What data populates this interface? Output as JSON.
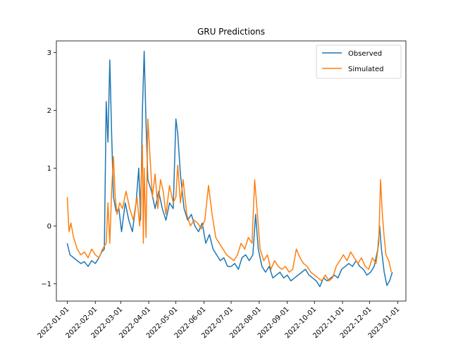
{
  "chart_data": {
    "type": "line",
    "title": "GRU Predictions",
    "xlabel": "",
    "ylabel": "",
    "x_tick_labels": [
      "2022-01-01",
      "2022-02-01",
      "2022-03-01",
      "2022-04-01",
      "2022-05-01",
      "2022-06-01",
      "2022-07-01",
      "2022-08-01",
      "2022-09-01",
      "2022-10-01",
      "2022-11-01",
      "2022-12-01",
      "2023-01-01"
    ],
    "y_ticks": [
      -1,
      0,
      1,
      2,
      3
    ],
    "ylim": [
      -1.3,
      3.2
    ],
    "xlim": [
      "2021-12-20",
      "2023-01-10"
    ],
    "grid": false,
    "legend_position": "top-right",
    "series": [
      {
        "name": "Observed",
        "color": "#1f77b4",
        "points": [
          [
            "2022-01-01",
            -0.3
          ],
          [
            "2022-01-04",
            -0.5
          ],
          [
            "2022-01-08",
            -0.55
          ],
          [
            "2022-01-12",
            -0.6
          ],
          [
            "2022-01-16",
            -0.65
          ],
          [
            "2022-01-20",
            -0.62
          ],
          [
            "2022-01-24",
            -0.7
          ],
          [
            "2022-01-28",
            -0.6
          ],
          [
            "2022-02-01",
            -0.65
          ],
          [
            "2022-02-05",
            -0.55
          ],
          [
            "2022-02-08",
            -0.45
          ],
          [
            "2022-02-11",
            -0.4
          ],
          [
            "2022-02-13",
            2.15
          ],
          [
            "2022-02-15",
            1.45
          ],
          [
            "2022-02-17",
            2.87
          ],
          [
            "2022-02-19",
            1.6
          ],
          [
            "2022-02-21",
            0.5
          ],
          [
            "2022-02-24",
            0.25
          ],
          [
            "2022-02-27",
            0.3
          ],
          [
            "2022-03-02",
            -0.1
          ],
          [
            "2022-03-06",
            0.4
          ],
          [
            "2022-03-10",
            0.1
          ],
          [
            "2022-03-14",
            -0.1
          ],
          [
            "2022-03-18",
            0.4
          ],
          [
            "2022-03-21",
            1.0
          ],
          [
            "2022-03-23",
            0.1
          ],
          [
            "2022-03-25",
            2.0
          ],
          [
            "2022-03-27",
            3.02
          ],
          [
            "2022-03-29",
            1.8
          ],
          [
            "2022-03-31",
            0.8
          ],
          [
            "2022-04-04",
            0.6
          ],
          [
            "2022-04-08",
            0.3
          ],
          [
            "2022-04-12",
            0.6
          ],
          [
            "2022-04-16",
            0.3
          ],
          [
            "2022-04-20",
            0.1
          ],
          [
            "2022-04-24",
            0.4
          ],
          [
            "2022-04-28",
            0.3
          ],
          [
            "2022-05-01",
            1.85
          ],
          [
            "2022-05-03",
            1.6
          ],
          [
            "2022-05-06",
            0.9
          ],
          [
            "2022-05-10",
            0.3
          ],
          [
            "2022-05-14",
            0.1
          ],
          [
            "2022-05-18",
            0.2
          ],
          [
            "2022-05-22",
            0.0
          ],
          [
            "2022-05-26",
            -0.1
          ],
          [
            "2022-05-30",
            0.05
          ],
          [
            "2022-06-03",
            -0.3
          ],
          [
            "2022-06-07",
            -0.15
          ],
          [
            "2022-06-11",
            -0.4
          ],
          [
            "2022-06-15",
            -0.5
          ],
          [
            "2022-06-19",
            -0.6
          ],
          [
            "2022-06-23",
            -0.55
          ],
          [
            "2022-06-27",
            -0.7
          ],
          [
            "2022-07-01",
            -0.7
          ],
          [
            "2022-07-05",
            -0.65
          ],
          [
            "2022-07-09",
            -0.75
          ],
          [
            "2022-07-13",
            -0.55
          ],
          [
            "2022-07-17",
            -0.5
          ],
          [
            "2022-07-21",
            -0.6
          ],
          [
            "2022-07-25",
            -0.5
          ],
          [
            "2022-07-28",
            0.2
          ],
          [
            "2022-07-31",
            -0.4
          ],
          [
            "2022-08-04",
            -0.7
          ],
          [
            "2022-08-08",
            -0.8
          ],
          [
            "2022-08-12",
            -0.7
          ],
          [
            "2022-08-16",
            -0.9
          ],
          [
            "2022-08-20",
            -0.85
          ],
          [
            "2022-08-24",
            -0.8
          ],
          [
            "2022-08-28",
            -0.9
          ],
          [
            "2022-09-01",
            -0.85
          ],
          [
            "2022-09-05",
            -0.95
          ],
          [
            "2022-09-09",
            -0.9
          ],
          [
            "2022-09-13",
            -0.85
          ],
          [
            "2022-09-17",
            -0.8
          ],
          [
            "2022-09-21",
            -0.75
          ],
          [
            "2022-09-25",
            -0.85
          ],
          [
            "2022-09-29",
            -0.9
          ],
          [
            "2022-10-03",
            -0.95
          ],
          [
            "2022-10-07",
            -1.05
          ],
          [
            "2022-10-11",
            -0.9
          ],
          [
            "2022-10-15",
            -0.95
          ],
          [
            "2022-10-19",
            -0.9
          ],
          [
            "2022-10-23",
            -0.85
          ],
          [
            "2022-10-27",
            -0.9
          ],
          [
            "2022-10-31",
            -0.75
          ],
          [
            "2022-11-04",
            -0.7
          ],
          [
            "2022-11-08",
            -0.65
          ],
          [
            "2022-11-12",
            -0.7
          ],
          [
            "2022-11-16",
            -0.6
          ],
          [
            "2022-11-20",
            -0.7
          ],
          [
            "2022-11-24",
            -0.75
          ],
          [
            "2022-11-28",
            -0.85
          ],
          [
            "2022-12-02",
            -0.8
          ],
          [
            "2022-12-06",
            -0.7
          ],
          [
            "2022-12-10",
            -0.4
          ],
          [
            "2022-12-12",
            0.0
          ],
          [
            "2022-12-14",
            -0.4
          ],
          [
            "2022-12-17",
            -0.8
          ],
          [
            "2022-12-20",
            -1.03
          ],
          [
            "2022-12-23",
            -0.95
          ],
          [
            "2022-12-26",
            -0.8
          ]
        ]
      },
      {
        "name": "Simulated",
        "color": "#ff7f0e",
        "points": [
          [
            "2022-01-01",
            0.5
          ],
          [
            "2022-01-03",
            -0.1
          ],
          [
            "2022-01-05",
            0.05
          ],
          [
            "2022-01-08",
            -0.2
          ],
          [
            "2022-01-12",
            -0.4
          ],
          [
            "2022-01-16",
            -0.5
          ],
          [
            "2022-01-20",
            -0.45
          ],
          [
            "2022-01-24",
            -0.55
          ],
          [
            "2022-01-28",
            -0.4
          ],
          [
            "2022-02-01",
            -0.5
          ],
          [
            "2022-02-05",
            -0.55
          ],
          [
            "2022-02-09",
            -0.4
          ],
          [
            "2022-02-13",
            -0.3
          ],
          [
            "2022-02-15",
            0.4
          ],
          [
            "2022-02-17",
            -0.3
          ],
          [
            "2022-02-19",
            0.6
          ],
          [
            "2022-02-21",
            1.2
          ],
          [
            "2022-02-23",
            0.5
          ],
          [
            "2022-02-25",
            0.2
          ],
          [
            "2022-02-28",
            0.4
          ],
          [
            "2022-03-03",
            0.3
          ],
          [
            "2022-03-07",
            0.6
          ],
          [
            "2022-03-11",
            0.3
          ],
          [
            "2022-03-15",
            0.1
          ],
          [
            "2022-03-19",
            0.5
          ],
          [
            "2022-03-22",
            0.0
          ],
          [
            "2022-03-25",
            1.4
          ],
          [
            "2022-03-26",
            -0.3
          ],
          [
            "2022-03-27",
            1.0
          ],
          [
            "2022-03-29",
            -0.2
          ],
          [
            "2022-03-31",
            1.85
          ],
          [
            "2022-04-02",
            1.3
          ],
          [
            "2022-04-05",
            0.5
          ],
          [
            "2022-04-08",
            0.9
          ],
          [
            "2022-04-11",
            0.3
          ],
          [
            "2022-04-14",
            0.8
          ],
          [
            "2022-04-17",
            0.6
          ],
          [
            "2022-04-20",
            0.2
          ],
          [
            "2022-04-24",
            0.7
          ],
          [
            "2022-04-28",
            0.4
          ],
          [
            "2022-05-01",
            0.5
          ],
          [
            "2022-05-03",
            1.05
          ],
          [
            "2022-05-06",
            0.4
          ],
          [
            "2022-05-09",
            0.8
          ],
          [
            "2022-05-13",
            0.2
          ],
          [
            "2022-05-17",
            0.0
          ],
          [
            "2022-05-21",
            0.1
          ],
          [
            "2022-05-25",
            0.05
          ],
          [
            "2022-05-29",
            -0.05
          ],
          [
            "2022-06-02",
            0.1
          ],
          [
            "2022-06-06",
            0.7
          ],
          [
            "2022-06-10",
            0.2
          ],
          [
            "2022-06-14",
            -0.2
          ],
          [
            "2022-06-18",
            -0.3
          ],
          [
            "2022-06-22",
            -0.4
          ],
          [
            "2022-06-26",
            -0.5
          ],
          [
            "2022-06-30",
            -0.55
          ],
          [
            "2022-07-04",
            -0.6
          ],
          [
            "2022-07-08",
            -0.5
          ],
          [
            "2022-07-12",
            -0.3
          ],
          [
            "2022-07-16",
            -0.4
          ],
          [
            "2022-07-20",
            -0.2
          ],
          [
            "2022-07-24",
            -0.3
          ],
          [
            "2022-07-27",
            0.8
          ],
          [
            "2022-07-30",
            0.2
          ],
          [
            "2022-08-02",
            -0.4
          ],
          [
            "2022-08-06",
            -0.6
          ],
          [
            "2022-08-10",
            -0.5
          ],
          [
            "2022-08-14",
            -0.75
          ],
          [
            "2022-08-18",
            -0.6
          ],
          [
            "2022-08-22",
            -0.7
          ],
          [
            "2022-08-26",
            -0.75
          ],
          [
            "2022-08-30",
            -0.7
          ],
          [
            "2022-09-03",
            -0.8
          ],
          [
            "2022-09-07",
            -0.75
          ],
          [
            "2022-09-11",
            -0.4
          ],
          [
            "2022-09-15",
            -0.55
          ],
          [
            "2022-09-19",
            -0.65
          ],
          [
            "2022-09-23",
            -0.7
          ],
          [
            "2022-09-27",
            -0.8
          ],
          [
            "2022-10-01",
            -0.85
          ],
          [
            "2022-10-05",
            -0.9
          ],
          [
            "2022-10-09",
            -0.95
          ],
          [
            "2022-10-13",
            -0.85
          ],
          [
            "2022-10-17",
            -0.95
          ],
          [
            "2022-10-21",
            -0.9
          ],
          [
            "2022-10-25",
            -0.7
          ],
          [
            "2022-10-29",
            -0.6
          ],
          [
            "2022-11-02",
            -0.5
          ],
          [
            "2022-11-06",
            -0.6
          ],
          [
            "2022-11-10",
            -0.45
          ],
          [
            "2022-11-14",
            -0.55
          ],
          [
            "2022-11-18",
            -0.65
          ],
          [
            "2022-11-22",
            -0.55
          ],
          [
            "2022-11-26",
            -0.7
          ],
          [
            "2022-11-30",
            -0.75
          ],
          [
            "2022-12-04",
            -0.55
          ],
          [
            "2022-12-08",
            -0.65
          ],
          [
            "2022-12-11",
            -0.3
          ],
          [
            "2022-12-13",
            0.8
          ],
          [
            "2022-12-15",
            0.2
          ],
          [
            "2022-12-17",
            -0.2
          ],
          [
            "2022-12-19",
            -0.5
          ],
          [
            "2022-12-22",
            -0.6
          ],
          [
            "2022-12-25",
            -0.8
          ]
        ]
      }
    ]
  }
}
